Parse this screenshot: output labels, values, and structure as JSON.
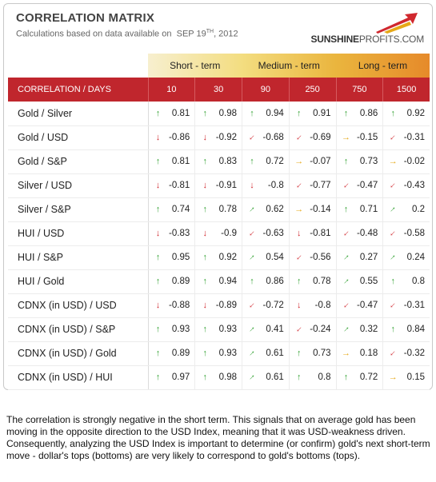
{
  "header": {
    "title": "CORRELATION MATRIX",
    "subtitle_prefix": "Calculations based on data available on",
    "date_main": "SEP 19",
    "date_sup": "TH",
    "date_year": ", 2012",
    "logo_brand": "SUNSHINE",
    "logo_rest": "PROFITS.COM"
  },
  "bands": {
    "short": "Short - term",
    "medium": "Medium - term",
    "long": "Long - term"
  },
  "columns": {
    "label": "CORRELATION / DAYS",
    "days": [
      "10",
      "30",
      "90",
      "250",
      "750",
      "1500"
    ]
  },
  "colors": {
    "header_red": "#c0262d",
    "arrow_green": "#3aa53a",
    "arrow_yellow": "#e6a817",
    "arrow_red": "#d0282e"
  },
  "rows": [
    {
      "pair": "Gold / Silver",
      "cells": [
        {
          "a": "up",
          "v": "0.81"
        },
        {
          "a": "up",
          "v": "0.98"
        },
        {
          "a": "up",
          "v": "0.94"
        },
        {
          "a": "up",
          "v": "0.91"
        },
        {
          "a": "up",
          "v": "0.86"
        },
        {
          "a": "up",
          "v": "0.92"
        }
      ]
    },
    {
      "pair": "Gold / USD",
      "cells": [
        {
          "a": "down",
          "v": "-0.86"
        },
        {
          "a": "down",
          "v": "-0.92"
        },
        {
          "a": "downright",
          "v": "-0.68"
        },
        {
          "a": "downright",
          "v": "-0.69"
        },
        {
          "a": "right",
          "v": "-0.15"
        },
        {
          "a": "downright",
          "v": "-0.31"
        }
      ]
    },
    {
      "pair": "Gold / S&P",
      "cells": [
        {
          "a": "up",
          "v": "0.81"
        },
        {
          "a": "up",
          "v": "0.83"
        },
        {
          "a": "up",
          "v": "0.72"
        },
        {
          "a": "right",
          "v": "-0.07"
        },
        {
          "a": "up",
          "v": "0.73"
        },
        {
          "a": "right",
          "v": "-0.02"
        }
      ]
    },
    {
      "pair": "Silver / USD",
      "cells": [
        {
          "a": "down",
          "v": "-0.81"
        },
        {
          "a": "down",
          "v": "-0.91"
        },
        {
          "a": "down",
          "v": "-0.8"
        },
        {
          "a": "downright",
          "v": "-0.77"
        },
        {
          "a": "downright",
          "v": "-0.47"
        },
        {
          "a": "downright",
          "v": "-0.43"
        }
      ]
    },
    {
      "pair": "Silver / S&P",
      "cells": [
        {
          "a": "up",
          "v": "0.74"
        },
        {
          "a": "up",
          "v": "0.78"
        },
        {
          "a": "upright",
          "v": "0.62"
        },
        {
          "a": "right",
          "v": "-0.14"
        },
        {
          "a": "up",
          "v": "0.71"
        },
        {
          "a": "upright",
          "v": "0.2"
        }
      ]
    },
    {
      "pair": "HUI / USD",
      "cells": [
        {
          "a": "down",
          "v": "-0.83"
        },
        {
          "a": "down",
          "v": "-0.9"
        },
        {
          "a": "downright",
          "v": "-0.63"
        },
        {
          "a": "down",
          "v": "-0.81"
        },
        {
          "a": "downright",
          "v": "-0.48"
        },
        {
          "a": "downright",
          "v": "-0.58"
        }
      ]
    },
    {
      "pair": "HUI / S&P",
      "cells": [
        {
          "a": "up",
          "v": "0.95"
        },
        {
          "a": "up",
          "v": "0.92"
        },
        {
          "a": "upright",
          "v": "0.54"
        },
        {
          "a": "downright",
          "v": "-0.56"
        },
        {
          "a": "upright",
          "v": "0.27"
        },
        {
          "a": "upright",
          "v": "0.24"
        }
      ]
    },
    {
      "pair": "HUI / Gold",
      "cells": [
        {
          "a": "up",
          "v": "0.89"
        },
        {
          "a": "up",
          "v": "0.94"
        },
        {
          "a": "up",
          "v": "0.86"
        },
        {
          "a": "up",
          "v": "0.78"
        },
        {
          "a": "upright",
          "v": "0.55"
        },
        {
          "a": "up",
          "v": "0.8"
        }
      ]
    },
    {
      "pair": "CDNX (in USD) / USD",
      "cells": [
        {
          "a": "down",
          "v": "-0.88"
        },
        {
          "a": "down",
          "v": "-0.89"
        },
        {
          "a": "downright",
          "v": "-0.72"
        },
        {
          "a": "down",
          "v": "-0.8"
        },
        {
          "a": "downright",
          "v": "-0.47"
        },
        {
          "a": "downright",
          "v": "-0.31"
        }
      ]
    },
    {
      "pair": "CDNX (in USD) / S&P",
      "cells": [
        {
          "a": "up",
          "v": "0.93"
        },
        {
          "a": "up",
          "v": "0.93"
        },
        {
          "a": "upright",
          "v": "0.41"
        },
        {
          "a": "downright",
          "v": "-0.24"
        },
        {
          "a": "upright",
          "v": "0.32"
        },
        {
          "a": "up",
          "v": "0.84"
        }
      ]
    },
    {
      "pair": "CDNX (in USD) / Gold",
      "cells": [
        {
          "a": "up",
          "v": "0.89"
        },
        {
          "a": "up",
          "v": "0.93"
        },
        {
          "a": "upright",
          "v": "0.61"
        },
        {
          "a": "up",
          "v": "0.73"
        },
        {
          "a": "right",
          "v": "0.18"
        },
        {
          "a": "downright",
          "v": "-0.32"
        }
      ]
    },
    {
      "pair": "CDNX (in USD) / HUI",
      "cells": [
        {
          "a": "up",
          "v": "0.97"
        },
        {
          "a": "up",
          "v": "0.98"
        },
        {
          "a": "upright",
          "v": "0.61"
        },
        {
          "a": "up",
          "v": "0.8"
        },
        {
          "a": "up",
          "v": "0.72"
        },
        {
          "a": "right",
          "v": "0.15"
        }
      ]
    }
  ],
  "note": "The correlation is strongly negative in the short term. This signals that on average gold has been moving in the opposite direction to the USD Index, meaning that it was USD-weakness driven. Consequently, analyzing the USD Index is important to determine (or confirm) gold's next short-term move - dollar's tops (bottoms) are very likely to correspond to gold's bottoms (tops)."
}
